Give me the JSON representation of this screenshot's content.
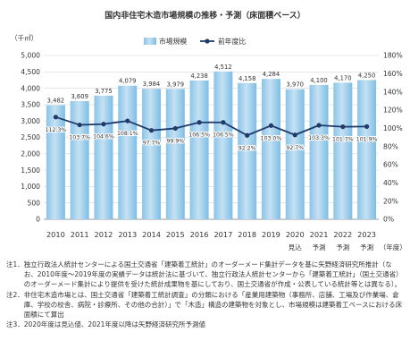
{
  "chart_data": {
    "type": "bar",
    "title": "国内非住宅木造市場規模の推移・予測（床面積ベース）",
    "categories": [
      "2010",
      "2011",
      "2012",
      "2013",
      "2014",
      "2015",
      "2016",
      "2017",
      "2018",
      "2019",
      "2020",
      "2021",
      "2022",
      "2023"
    ],
    "category_notes": [
      "",
      "",
      "",
      "",
      "",
      "",
      "",
      "",
      "",
      "",
      "見込",
      "予測",
      "予測",
      "予測"
    ],
    "xlabel": "（年度）",
    "ylabel": "（千㎡）",
    "ylim": [
      0,
      5000
    ],
    "y_tick_labels": [
      "0",
      "500",
      "1,000",
      "1,500",
      "2,000",
      "2,500",
      "3,000",
      "3,500",
      "4,000",
      "4,500",
      "5,000"
    ],
    "y2lim": [
      0,
      180
    ],
    "y2_tick_labels": [
      "0%",
      "20%",
      "40%",
      "60%",
      "80%",
      "100%",
      "120%",
      "140%",
      "160%",
      "180%"
    ],
    "series": [
      {
        "name": "市場規模",
        "type": "bar",
        "axis": "left",
        "color": "#7dbde5",
        "values": [
          3482,
          3609,
          3775,
          4079,
          3984,
          3979,
          4238,
          4512,
          4158,
          4284,
          3970,
          4100,
          4170,
          4250
        ],
        "labels": [
          "3,482",
          "3,609",
          "3,775",
          "4,079",
          "3,984",
          "3,979",
          "4,238",
          "4,512",
          "4,158",
          "4,284",
          "3,970",
          "4,100",
          "4,170",
          "4,250"
        ]
      },
      {
        "name": "前年度比",
        "type": "line",
        "axis": "right",
        "color": "#1f3a6b",
        "values": [
          112.3,
          103.7,
          104.6,
          108.1,
          97.7,
          99.9,
          106.5,
          106.5,
          92.2,
          103.0,
          92.7,
          103.3,
          101.7,
          101.9
        ],
        "labels": [
          "112.3%",
          "103.7%",
          "104.6%",
          "108.1%",
          "97.7%",
          "99.9%",
          "106.5%",
          "106.5%",
          "92.2%",
          "103.0%",
          "92.7%",
          "103.3%",
          "101.7%",
          "101.9%"
        ]
      }
    ],
    "legend": "top-center",
    "grid": true
  },
  "notes": [
    {
      "label": "注1．",
      "text": "独立行政法人統計センターによる国土交通省「建築着工統計」のオーダーメード集計データを基に矢野経済研究所推計（なお、2010年度～2019年度の実績データは統計法に基づいて、独立行政法人統計センターから「建築着工統計」（国土交通省）のオーダーメード集計により提供を受けた統計成果物を基にしており、国土交通省が作成・公表している統計等とは異なる）。"
    },
    {
      "label": "注2．",
      "text": "非住宅木造市場とは、国土交通省「建築着工統計調査」の分類における「産業用建築物（事務所、店舗、工場及び作業場、倉庫、学校の校舎、病院・診療所、その他の合計）」で「木造」構造の建築物を対象とし、市場規模は建築着工ベースにおける床面積にて算出"
    },
    {
      "label": "注3．",
      "text": "2020年度は見込値、2021年度以降は矢野経済研究所予測値"
    }
  ]
}
